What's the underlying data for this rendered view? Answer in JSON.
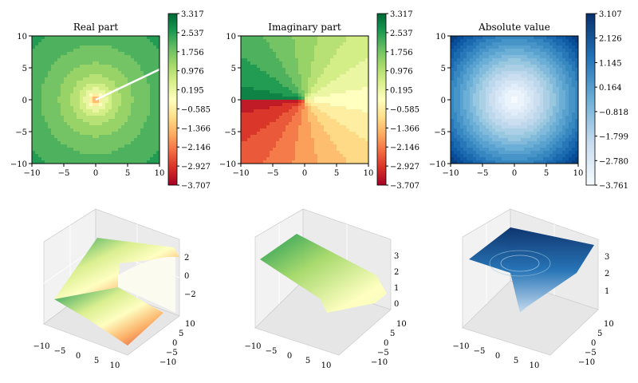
{
  "chart_data": [
    {
      "type": "heatmap",
      "title": "Real part",
      "xlim": [
        -10,
        10
      ],
      "ylim": [
        -10,
        10
      ],
      "x_ticks": [
        "−10",
        "−5",
        "0",
        "5",
        "10"
      ],
      "y_ticks": [
        "10",
        "5",
        "0",
        "−5",
        "−10"
      ],
      "colormap": "RdYlGn",
      "colorbar_ticks": [
        "3.317",
        "2.537",
        "1.756",
        "0.976",
        "0.195",
        "−0.585",
        "−1.366",
        "−2.146",
        "−2.927",
        "−3.707"
      ],
      "colorbar_range": [
        -3.707,
        3.317
      ]
    },
    {
      "type": "heatmap",
      "title": "Imaginary part",
      "xlim": [
        -10,
        10
      ],
      "ylim": [
        -10,
        10
      ],
      "x_ticks": [
        "−10",
        "−5",
        "0",
        "5",
        "10"
      ],
      "y_ticks": [
        "10",
        "5",
        "0",
        "−5",
        "−10"
      ],
      "colormap": "RdYlGn",
      "colorbar_ticks": [
        "3.317",
        "2.537",
        "1.756",
        "0.976",
        "0.195",
        "−0.585",
        "−1.366",
        "−2.146",
        "−2.927",
        "−3.707"
      ],
      "colorbar_range": [
        -3.707,
        3.317
      ]
    },
    {
      "type": "heatmap",
      "title": "Absolute value",
      "xlim": [
        -10,
        10
      ],
      "ylim": [
        -10,
        10
      ],
      "x_ticks": [
        "−10",
        "−5",
        "0",
        "5",
        "10"
      ],
      "y_ticks": [
        "10",
        "5",
        "0",
        "−5",
        "−10"
      ],
      "colormap": "Blues",
      "colorbar_ticks": [
        "3.107",
        "2.126",
        "1.145",
        "0.164",
        "−0.818",
        "−1.799",
        "−2.780",
        "−3.761"
      ],
      "colorbar_range": [
        -3.761,
        3.107
      ]
    },
    {
      "type": "surface3d",
      "xlim": [
        -10,
        10
      ],
      "ylim": [
        -10,
        10
      ],
      "zlim": [
        -3.7,
        3.3
      ],
      "x_ticks": [
        "−10",
        "−5",
        "0",
        "5",
        "10"
      ],
      "y_ticks": [
        "10",
        "5",
        "0",
        "−5",
        "−10"
      ],
      "z_ticks": [
        "2",
        "0",
        "−2"
      ],
      "colormap": "RdYlGn"
    },
    {
      "type": "surface3d",
      "xlim": [
        -10,
        10
      ],
      "ylim": [
        -10,
        10
      ],
      "zlim": [
        0,
        3.4
      ],
      "x_ticks": [
        "−10",
        "−5",
        "0",
        "5",
        "10"
      ],
      "y_ticks": [
        "10",
        "5",
        "0",
        "−5",
        "−10"
      ],
      "z_ticks": [
        "3",
        "2",
        "1",
        "0"
      ],
      "colormap": "RdYlGn"
    },
    {
      "type": "surface3d",
      "xlim": [
        -10,
        10
      ],
      "ylim": [
        -10,
        10
      ],
      "zlim": [
        0,
        3.4
      ],
      "x_ticks": [
        "−10",
        "−5",
        "0",
        "5",
        "10"
      ],
      "y_ticks": [
        "10",
        "5",
        "0",
        "−5",
        "−10"
      ],
      "z_ticks": [
        "3",
        "2",
        "1"
      ],
      "colormap": "Blues"
    }
  ]
}
